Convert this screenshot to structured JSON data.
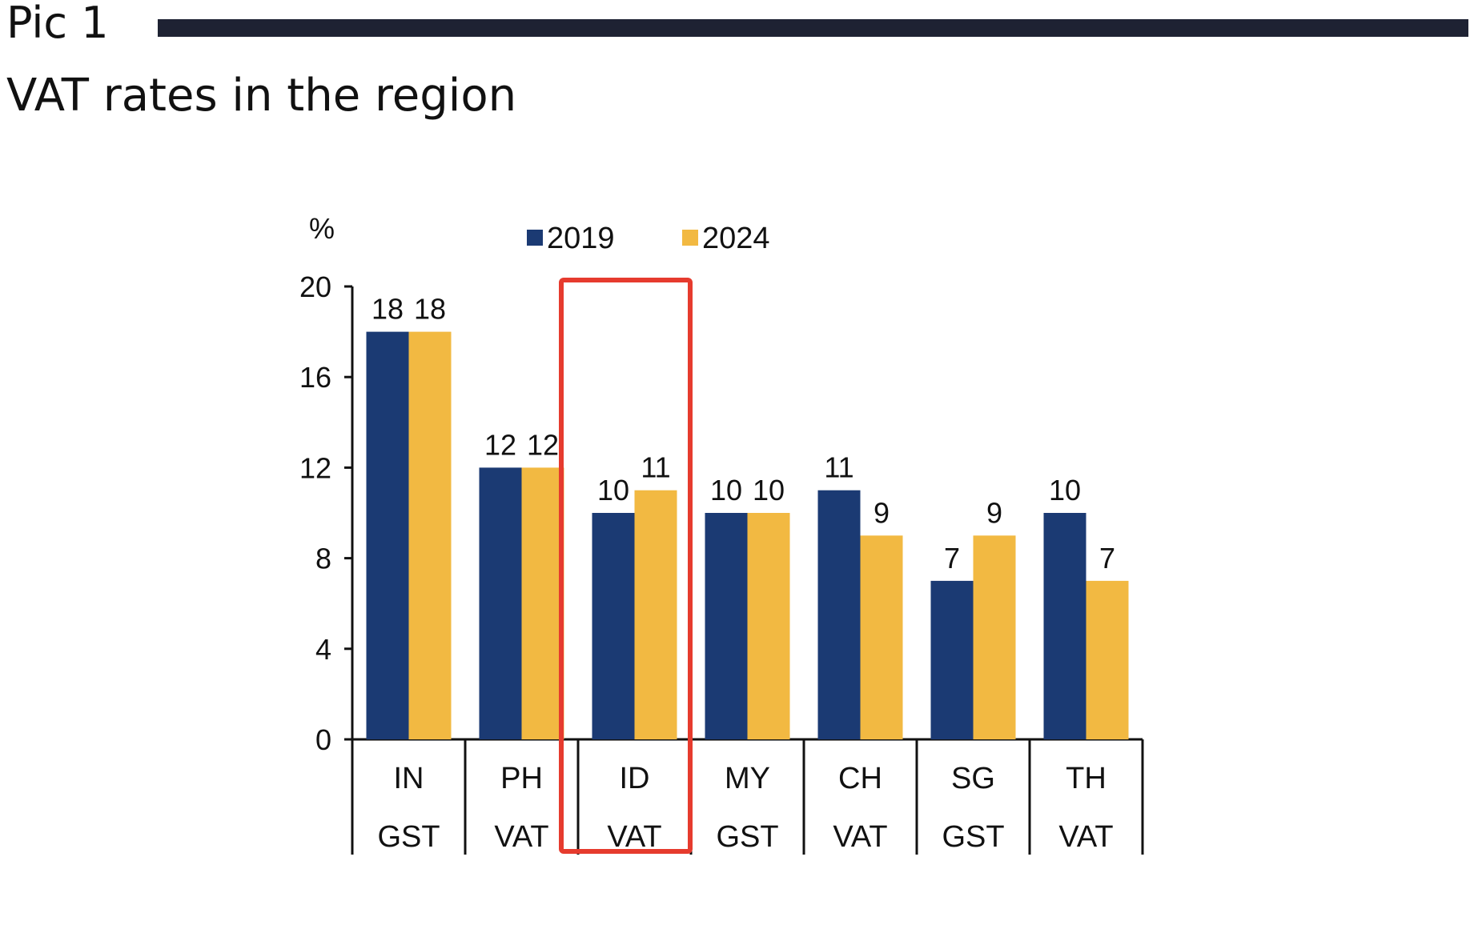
{
  "header": {
    "pic_label": "Pic 1",
    "title": "VAT rates in the region"
  },
  "colors": {
    "series_2019": "#1b3a73",
    "series_2024": "#f2b942",
    "header_rule": "#1e2233",
    "highlight_box": "#e63b2e"
  },
  "chart_data": {
    "type": "bar",
    "unit_label": "%",
    "categories": [
      {
        "country": "IN",
        "tax": "GST"
      },
      {
        "country": "PH",
        "tax": "VAT"
      },
      {
        "country": "ID",
        "tax": "VAT"
      },
      {
        "country": "MY",
        "tax": "GST"
      },
      {
        "country": "CH",
        "tax": "VAT"
      },
      {
        "country": "SG",
        "tax": "GST"
      },
      {
        "country": "TH",
        "tax": "VAT"
      }
    ],
    "series": [
      {
        "name": "2019",
        "values": [
          18,
          12,
          10,
          10,
          11,
          7,
          10
        ],
        "color": "#1b3a73"
      },
      {
        "name": "2024",
        "values": [
          18,
          12,
          11,
          10,
          9,
          9,
          7
        ],
        "color": "#f2b942"
      }
    ],
    "ylim": [
      0,
      20
    ],
    "yticks": [
      0,
      4,
      8,
      12,
      16,
      20
    ],
    "legend_position": "top",
    "grid": false,
    "highlighted_category": "ID"
  }
}
